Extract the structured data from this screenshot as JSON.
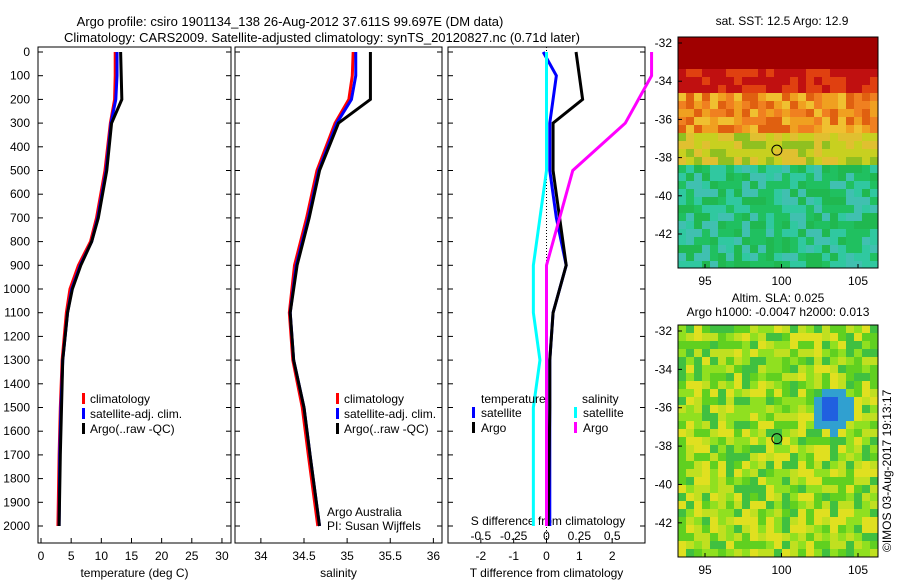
{
  "chart_data": [
    {
      "type": "line",
      "title_line1": "Argo profile: csiro 1901134_138 26-Aug-2012 37.611S 99.697E (DM data)",
      "title_line2": "Climatology: CARS2009. Satellite-adjusted climatology: synTS_20120827.nc (0.71d later)",
      "xlabel": "temperature (deg C)",
      "xlim": [
        -0.5,
        31.5
      ],
      "xticks": [
        0,
        5,
        10,
        15,
        20,
        25,
        30
      ],
      "ylim": [
        2080,
        0
      ],
      "yticks": [
        0,
        100,
        200,
        300,
        400,
        500,
        600,
        700,
        800,
        900,
        1000,
        1100,
        1200,
        1300,
        1400,
        1500,
        1600,
        1700,
        1800,
        1900,
        2000
      ],
      "legend": [
        "climatology",
        "satellite-adj. clim.",
        "Argo(..raw -QC)"
      ],
      "depth": [
        0,
        100,
        200,
        300,
        500,
        700,
        800,
        900,
        1000,
        1100,
        1300,
        1500,
        1700,
        2000
      ],
      "series": [
        {
          "name": "climatology",
          "color": "#ff0000",
          "values": [
            12.3,
            12.3,
            12.2,
            11.5,
            10.6,
            9.2,
            8.2,
            6.2,
            4.8,
            4.2,
            3.5,
            3.2,
            3.0,
            2.8
          ]
        },
        {
          "name": "satellite-adj. clim.",
          "color": "#0000ff",
          "values": [
            12.6,
            12.6,
            12.4,
            11.6,
            10.8,
            9.4,
            8.4,
            6.5,
            5.1,
            4.4,
            3.6,
            3.3,
            3.1,
            3.0
          ]
        },
        {
          "name": "Argo",
          "color": "#000000",
          "values": [
            13.2,
            13.3,
            13.4,
            11.7,
            10.9,
            9.5,
            8.4,
            6.6,
            5.2,
            4.4,
            3.6,
            3.4,
            3.2,
            3.0
          ]
        }
      ]
    },
    {
      "type": "line",
      "xlabel": "salinity",
      "xlim": [
        33.7,
        36.1
      ],
      "xticks": [
        34,
        34.5,
        35,
        35.5,
        36
      ],
      "xticklabels": [
        "34",
        "34.5",
        "35",
        "35.5",
        "36"
      ],
      "legend": [
        "climatology",
        "satellite-adj. clim.",
        "Argo(..raw -QC)"
      ],
      "annotation": [
        "Argo Australia",
        "PI: Susan Wijffels"
      ],
      "depth": [
        0,
        100,
        200,
        300,
        500,
        700,
        900,
        1100,
        1300,
        1500,
        1700,
        2000
      ],
      "series": [
        {
          "name": "climatology",
          "color": "#ff0000",
          "values": [
            35.07,
            35.06,
            35.02,
            34.86,
            34.65,
            34.53,
            34.39,
            34.33,
            34.37,
            34.48,
            34.55,
            34.66
          ]
        },
        {
          "name": "satellite-adj. clim.",
          "color": "#0000ff",
          "values": [
            35.1,
            35.1,
            35.05,
            34.88,
            34.67,
            34.55,
            34.41,
            34.34,
            34.38,
            34.5,
            34.57,
            34.68
          ]
        },
        {
          "name": "Argo",
          "color": "#000000",
          "values": [
            35.27,
            35.27,
            35.27,
            34.9,
            34.68,
            34.56,
            34.42,
            34.34,
            34.38,
            34.5,
            34.57,
            34.68
          ]
        }
      ]
    },
    {
      "type": "line",
      "xlabel": "T difference from climatology",
      "xlabel_top": "S difference from climatology",
      "xlim": [
        -3,
        3
      ],
      "xticks": [
        -2,
        -1,
        0,
        1,
        2
      ],
      "sticks": [
        -0.5,
        -0.25,
        0,
        0.25,
        0.5
      ],
      "sticklabels": [
        "-0.5",
        "-0.25",
        "0",
        "0.25",
        "0.5"
      ],
      "legend_t_title": "temperature",
      "legend_s_title": "salinity",
      "legend_items": [
        "satellite",
        "Argo",
        "satellite",
        "Argo"
      ],
      "depth": [
        0,
        100,
        200,
        300,
        500,
        700,
        900,
        1000,
        1100,
        1300,
        1500,
        2000
      ],
      "series": [
        {
          "name": "T satellite",
          "color": "#0000ff",
          "values": [
            -0.1,
            0.3,
            0.2,
            0.1,
            0.1,
            0.3,
            0.6,
            0.4,
            0.2,
            0.1,
            0.1,
            0.1
          ]
        },
        {
          "name": "T Argo",
          "color": "#000000",
          "values": [
            0.9,
            1.0,
            1.1,
            0.2,
            0.2,
            0.4,
            0.6,
            0.4,
            0.2,
            0.1,
            0.1,
            0.05
          ]
        },
        {
          "name": "S satellite",
          "color": "#00ffff",
          "values": [
            0.0,
            0.0,
            0.0,
            0.0,
            0.0,
            -0.05,
            -0.1,
            -0.1,
            -0.1,
            -0.05,
            -0.1,
            -0.1
          ]
        },
        {
          "name": "S Argo",
          "color": "#ff00ff",
          "values": [
            0.8,
            0.8,
            0.7,
            0.6,
            0.2,
            0.1,
            0.0,
            0.0,
            0.0,
            0.0,
            0.0,
            0.0
          ]
        }
      ]
    }
  ],
  "maps": [
    {
      "title": "sat. SST: 12.5 Argo: 12.9",
      "kind": "sst"
    },
    {
      "title_line1": "Altim. SLA: 0.025",
      "title_line2": "Argo h1000: -0.0047 h2000: 0.013",
      "kind": "sla"
    }
  ],
  "map_axes": {
    "lat": [
      -32,
      -34,
      -36,
      -38,
      -40,
      -42
    ],
    "lon": [
      95,
      100,
      105
    ],
    "profile_lat": -37.611,
    "profile_lon": 99.697
  },
  "credit": "©IMOS 03-Aug-2017 19:13:17"
}
